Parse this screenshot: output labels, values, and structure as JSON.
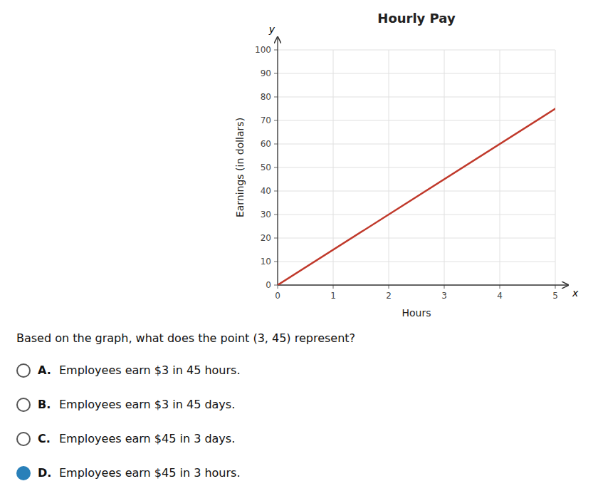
{
  "chart_data": {
    "type": "line",
    "title": "Hourly Pay",
    "x_label": "Hours",
    "y_label": "Earnings (in dollars)",
    "x_axis_symbol": "x",
    "y_axis_symbol": "y",
    "x": [
      0,
      5
    ],
    "series": [
      {
        "color": "#c0392b",
        "values": [
          0,
          75
        ]
      }
    ],
    "xlim": [
      0,
      5
    ],
    "ylim": [
      0,
      100
    ],
    "xticks": [
      0,
      1,
      2,
      3,
      4,
      5
    ],
    "yticks": [
      0,
      10,
      20,
      30,
      40,
      50,
      60,
      70,
      80,
      90,
      100
    ],
    "grid": true,
    "question": "Based on the graph, what does the point (3, 45) represent?",
    "choices": [
      {
        "label": "A.",
        "text": "Employees earn $3 in 45 hours.",
        "selected": false,
        "color": "#555555"
      },
      {
        "label": "B.",
        "text": "Employees earn $3 in 45 days.",
        "selected": false,
        "color": "#555555"
      },
      {
        "label": "C.",
        "text": "Employees earn $45 in 3 days.",
        "selected": false,
        "color": "#555555"
      },
      {
        "label": "D.",
        "text": "Employees earn $45 in 3 hours.",
        "selected": true,
        "color": "#2980b9"
      }
    ]
  }
}
